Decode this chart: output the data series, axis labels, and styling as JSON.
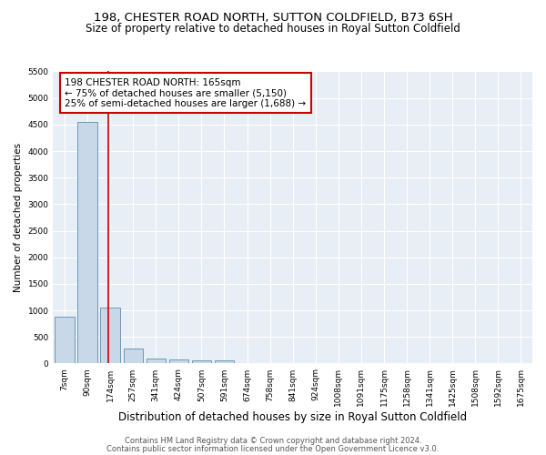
{
  "title": "198, CHESTER ROAD NORTH, SUTTON COLDFIELD, B73 6SH",
  "subtitle": "Size of property relative to detached houses in Royal Sutton Coldfield",
  "xlabel": "Distribution of detached houses by size in Royal Sutton Coldfield",
  "ylabel": "Number of detached properties",
  "footnote1": "Contains HM Land Registry data © Crown copyright and database right 2024.",
  "footnote2": "Contains public sector information licensed under the Open Government Licence v3.0.",
  "annotation_line1": "198 CHESTER ROAD NORTH: 165sqm",
  "annotation_line2": "← 75% of detached houses are smaller (5,150)",
  "annotation_line3": "25% of semi-detached houses are larger (1,688) →",
  "bar_color": "#c8d8e8",
  "bar_edge_color": "#5b8db0",
  "vline_color": "#cc0000",
  "annotation_box_facecolor": "#ffffff",
  "annotation_box_edgecolor": "#cc0000",
  "bins": [
    "7sqm",
    "90sqm",
    "174sqm",
    "257sqm",
    "341sqm",
    "424sqm",
    "507sqm",
    "591sqm",
    "674sqm",
    "758sqm",
    "841sqm",
    "924sqm",
    "1008sqm",
    "1091sqm",
    "1175sqm",
    "1258sqm",
    "1341sqm",
    "1425sqm",
    "1508sqm",
    "1592sqm",
    "1675sqm"
  ],
  "values": [
    880,
    4550,
    1060,
    285,
    95,
    80,
    60,
    55,
    0,
    0,
    0,
    0,
    0,
    0,
    0,
    0,
    0,
    0,
    0,
    0
  ],
  "vline_x": 1.9,
  "ylim": [
    0,
    5500
  ],
  "yticks": [
    0,
    500,
    1000,
    1500,
    2000,
    2500,
    3000,
    3500,
    4000,
    4500,
    5000,
    5500
  ],
  "figsize": [
    6.0,
    5.0
  ],
  "dpi": 100,
  "title_fontsize": 9.5,
  "subtitle_fontsize": 8.5,
  "xlabel_fontsize": 8.5,
  "ylabel_fontsize": 7.5,
  "tick_fontsize": 6.5,
  "annotation_fontsize": 7.5,
  "footnote_fontsize": 6.0,
  "bg_color": "#e8eef5"
}
